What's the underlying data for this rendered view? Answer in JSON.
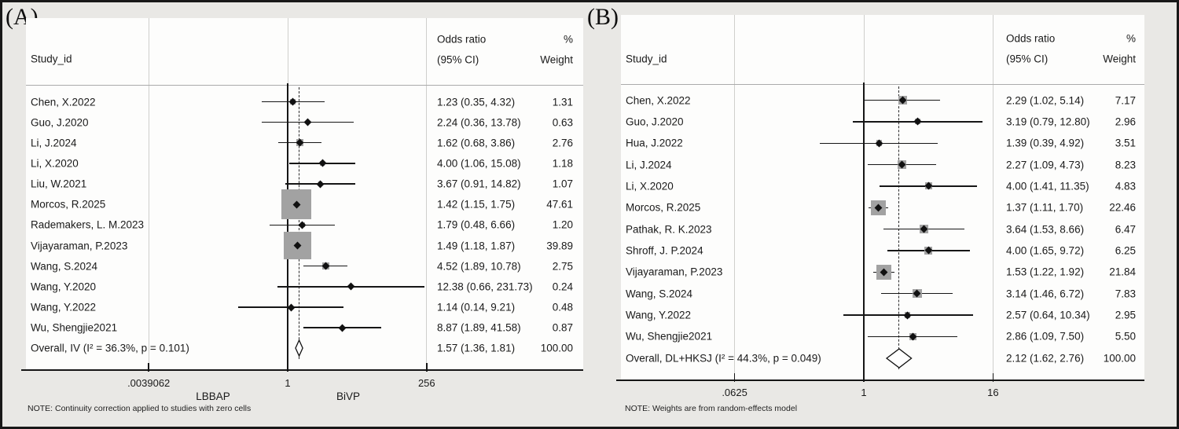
{
  "figure": {
    "background_color": "#e9e8e5",
    "panel_background": "#fdfdfc",
    "marker_color": "#a2a2a2",
    "line_color": "#161616"
  },
  "chart_data": [
    {
      "type": "forest",
      "panel_label": "(A)",
      "columns": {
        "study": "Study_id",
        "or_line1": "Odds ratio",
        "or_line2": "(95% CI)",
        "weight_line1": "%",
        "weight_line2": "Weight"
      },
      "axis": {
        "scale": "log",
        "ticks": [
          ".0039062",
          "1",
          "256"
        ],
        "tick_values": [
          0.0039062,
          1,
          256
        ],
        "left_label": "LBBAP",
        "right_label": "BiVP"
      },
      "null_value": 1,
      "studies": [
        {
          "label": "Chen, X.2022",
          "est": 1.23,
          "lo": 0.35,
          "hi": 4.32,
          "ci_text": "1.23 (0.35, 4.32)",
          "weight": 1.31,
          "weight_text": "1.31"
        },
        {
          "label": "Guo, J.2020",
          "est": 2.24,
          "lo": 0.36,
          "hi": 13.78,
          "ci_text": "2.24 (0.36, 13.78)",
          "weight": 0.63,
          "weight_text": "0.63"
        },
        {
          "label": "Li, J.2024",
          "est": 1.62,
          "lo": 0.68,
          "hi": 3.86,
          "ci_text": "1.62 (0.68, 3.86)",
          "weight": 2.76,
          "weight_text": "2.76"
        },
        {
          "label": "Li, X.2020",
          "est": 4.0,
          "lo": 1.06,
          "hi": 15.08,
          "ci_text": "4.00 (1.06, 15.08)",
          "weight": 1.18,
          "weight_text": "1.18"
        },
        {
          "label": "Liu, W.2021",
          "est": 3.67,
          "lo": 0.91,
          "hi": 14.82,
          "ci_text": "3.67 (0.91, 14.82)",
          "weight": 1.07,
          "weight_text": "1.07"
        },
        {
          "label": "Morcos, R.2025",
          "est": 1.42,
          "lo": 1.15,
          "hi": 1.75,
          "ci_text": "1.42 (1.15, 1.75)",
          "weight": 47.61,
          "weight_text": "47.61"
        },
        {
          "label": "Rademakers, L. M.2023",
          "est": 1.79,
          "lo": 0.48,
          "hi": 6.66,
          "ci_text": "1.79 (0.48, 6.66)",
          "weight": 1.2,
          "weight_text": "1.20"
        },
        {
          "label": "Vijayaraman, P.2023",
          "est": 1.49,
          "lo": 1.18,
          "hi": 1.87,
          "ci_text": "1.49 (1.18, 1.87)",
          "weight": 39.89,
          "weight_text": "39.89"
        },
        {
          "label": "Wang, S.2024",
          "est": 4.52,
          "lo": 1.89,
          "hi": 10.78,
          "ci_text": "4.52 (1.89, 10.78)",
          "weight": 2.75,
          "weight_text": "2.75"
        },
        {
          "label": "Wang, Y.2020",
          "est": 12.38,
          "lo": 0.66,
          "hi": 231.73,
          "ci_text": "12.38 (0.66, 231.73)",
          "weight": 0.24,
          "weight_text": "0.24"
        },
        {
          "label": "Wang, Y.2022",
          "est": 1.14,
          "lo": 0.14,
          "hi": 9.21,
          "ci_text": "1.14 (0.14, 9.21)",
          "weight": 0.48,
          "weight_text": "0.48"
        },
        {
          "label": "Wu, Shengjie2021",
          "est": 8.87,
          "lo": 1.89,
          "hi": 41.58,
          "ci_text": "8.87 (1.89, 41.58)",
          "weight": 0.87,
          "weight_text": "0.87"
        }
      ],
      "overall": {
        "label": "Overall, IV (I² = 36.3%, p = 0.101)",
        "est": 1.57,
        "lo": 1.36,
        "hi": 1.81,
        "ci_text": "1.57 (1.36, 1.81)",
        "weight_text": "100.00"
      },
      "note": "NOTE: Continuity correction applied to studies with zero cells"
    },
    {
      "type": "forest",
      "panel_label": "(B)",
      "columns": {
        "study": "Study_id",
        "or_line1": "Odds ratio",
        "or_line2": "(95% CI)",
        "weight_line1": "%",
        "weight_line2": "Weight"
      },
      "axis": {
        "scale": "log",
        "ticks": [
          ".0625",
          "1",
          "16"
        ],
        "tick_values": [
          0.0625,
          1,
          16
        ]
      },
      "null_value": 1,
      "studies": [
        {
          "label": "Chen, X.2022",
          "est": 2.29,
          "lo": 1.02,
          "hi": 5.14,
          "ci_text": "2.29 (1.02, 5.14)",
          "weight": 7.17,
          "weight_text": "7.17"
        },
        {
          "label": "Guo, J.2020",
          "est": 3.19,
          "lo": 0.79,
          "hi": 12.8,
          "ci_text": "3.19 (0.79, 12.80)",
          "weight": 2.96,
          "weight_text": "2.96"
        },
        {
          "label": "Hua, J.2022",
          "est": 1.39,
          "lo": 0.39,
          "hi": 4.92,
          "ci_text": "1.39 (0.39, 4.92)",
          "weight": 3.51,
          "weight_text": "3.51"
        },
        {
          "label": "Li, J.2024",
          "est": 2.27,
          "lo": 1.09,
          "hi": 4.73,
          "ci_text": "2.27 (1.09, 4.73)",
          "weight": 8.23,
          "weight_text": "8.23"
        },
        {
          "label": "Li, X.2020",
          "est": 4.0,
          "lo": 1.41,
          "hi": 11.35,
          "ci_text": "4.00 (1.41, 11.35)",
          "weight": 4.83,
          "weight_text": "4.83"
        },
        {
          "label": "Morcos, R.2025",
          "est": 1.37,
          "lo": 1.11,
          "hi": 1.7,
          "ci_text": "1.37 (1.11, 1.70)",
          "weight": 22.46,
          "weight_text": "22.46"
        },
        {
          "label": "Pathak, R. K.2023",
          "est": 3.64,
          "lo": 1.53,
          "hi": 8.66,
          "ci_text": "3.64 (1.53, 8.66)",
          "weight": 6.47,
          "weight_text": "6.47"
        },
        {
          "label": "Shroff, J. P.2024",
          "est": 4.0,
          "lo": 1.65,
          "hi": 9.72,
          "ci_text": "4.00 (1.65, 9.72)",
          "weight": 6.25,
          "weight_text": "6.25"
        },
        {
          "label": "Vijayaraman, P.2023",
          "est": 1.53,
          "lo": 1.22,
          "hi": 1.92,
          "ci_text": "1.53 (1.22, 1.92)",
          "weight": 21.84,
          "weight_text": "21.84"
        },
        {
          "label": "Wang, S.2024",
          "est": 3.14,
          "lo": 1.46,
          "hi": 6.72,
          "ci_text": "3.14 (1.46, 6.72)",
          "weight": 7.83,
          "weight_text": "7.83"
        },
        {
          "label": "Wang, Y.2022",
          "est": 2.57,
          "lo": 0.64,
          "hi": 10.34,
          "ci_text": "2.57 (0.64, 10.34)",
          "weight": 2.95,
          "weight_text": "2.95"
        },
        {
          "label": "Wu, Shengjie2021",
          "est": 2.86,
          "lo": 1.09,
          "hi": 7.5,
          "ci_text": "2.86 (1.09, 7.50)",
          "weight": 5.5,
          "weight_text": "5.50"
        }
      ],
      "overall": {
        "label": "Overall, DL+HKSJ (I² = 44.3%, p = 0.049)",
        "est": 2.12,
        "lo": 1.62,
        "hi": 2.76,
        "ci_text": "2.12 (1.62, 2.76)",
        "weight_text": "100.00"
      },
      "note": "NOTE: Weights are from random-effects model"
    }
  ]
}
